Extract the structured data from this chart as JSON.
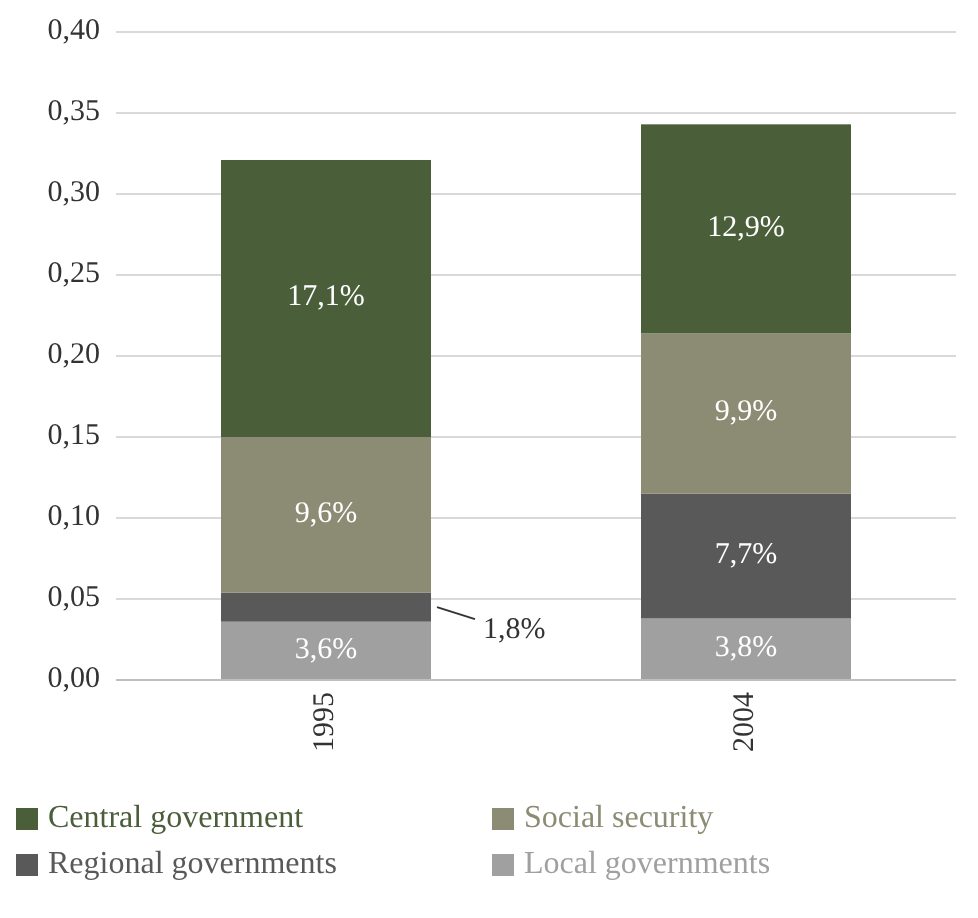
{
  "chart_data": {
    "type": "bar",
    "stacked": true,
    "categories": [
      "1995",
      "2004"
    ],
    "series": [
      {
        "name": "Local governments",
        "color": "#a0a0a0",
        "values": [
          0.036,
          0.038
        ],
        "value_labels": [
          "3,6%",
          "3,8%"
        ]
      },
      {
        "name": "Regional governments",
        "color": "#595959",
        "values": [
          0.018,
          0.077
        ],
        "value_labels": [
          "1,8%",
          "7,7%"
        ]
      },
      {
        "name": "Social security",
        "color": "#8c8b73",
        "values": [
          0.096,
          0.099
        ],
        "value_labels": [
          "9,6%",
          "9,9%"
        ]
      },
      {
        "name": "Central government",
        "color": "#4a5e3a",
        "values": [
          0.171,
          0.129
        ],
        "value_labels": [
          "17,1%",
          "12,9%"
        ]
      }
    ],
    "ylim": [
      0,
      0.4
    ],
    "yticks": [
      {
        "value": 0,
        "label": "0,00"
      },
      {
        "value": 0.05,
        "label": "0,05"
      },
      {
        "value": 0.1,
        "label": "0,10"
      },
      {
        "value": 0.15,
        "label": "0,15"
      },
      {
        "value": 0.2,
        "label": "0,20"
      },
      {
        "value": 0.25,
        "label": "0,25"
      },
      {
        "value": 0.3,
        "label": "0,30"
      },
      {
        "value": 0.35,
        "label": "0,35"
      },
      {
        "value": 0.4,
        "label": "0,40"
      }
    ],
    "grid": "y",
    "legend": "bottom"
  }
}
